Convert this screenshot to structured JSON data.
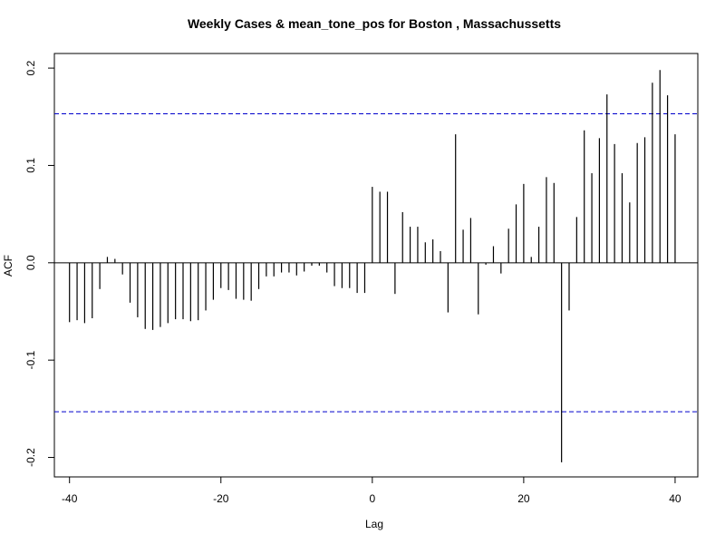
{
  "chart_data": {
    "type": "bar",
    "subtype": "ccf-stem",
    "title": "Weekly Cases & mean_tone_pos for Boston , Massachussetts",
    "xlabel": "Lag",
    "ylabel": "ACF",
    "xlim": [
      -42,
      43
    ],
    "ylim": [
      -0.22,
      0.215
    ],
    "xticks": [
      -40,
      -20,
      0,
      20,
      40
    ],
    "xtick_labels": [
      "-40",
      "-20",
      "0",
      "20",
      "40"
    ],
    "yticks": [
      -0.2,
      -0.1,
      0.0,
      0.1,
      0.2
    ],
    "ytick_labels": [
      "-0.2",
      "-0.1",
      "0.0",
      "0.1",
      "0.2"
    ],
    "confidence_band": [
      -0.153,
      0.153
    ],
    "confidence_color": "#0000cc",
    "bar_color": "#000000",
    "grid": false,
    "x": [
      -40,
      -39,
      -38,
      -37,
      -36,
      -35,
      -34,
      -33,
      -32,
      -31,
      -30,
      -29,
      -28,
      -27,
      -26,
      -25,
      -24,
      -23,
      -22,
      -21,
      -20,
      -19,
      -18,
      -17,
      -16,
      -15,
      -14,
      -13,
      -12,
      -11,
      -10,
      -9,
      -8,
      -7,
      -6,
      -5,
      -4,
      -3,
      -2,
      -1,
      0,
      1,
      2,
      3,
      4,
      5,
      6,
      7,
      8,
      9,
      10,
      11,
      12,
      13,
      14,
      15,
      16,
      17,
      18,
      19,
      20,
      21,
      22,
      23,
      24,
      25,
      26,
      27,
      28,
      29,
      30,
      31,
      32,
      33,
      34,
      35,
      36,
      37,
      38,
      39,
      40
    ],
    "values": [
      -0.061,
      -0.059,
      -0.062,
      -0.057,
      -0.027,
      0.006,
      0.004,
      -0.012,
      -0.041,
      -0.056,
      -0.068,
      -0.069,
      -0.066,
      -0.062,
      -0.058,
      -0.058,
      -0.06,
      -0.059,
      -0.049,
      -0.038,
      -0.026,
      -0.028,
      -0.037,
      -0.038,
      -0.039,
      -0.027,
      -0.014,
      -0.014,
      -0.01,
      -0.01,
      -0.013,
      -0.009,
      -0.003,
      -0.003,
      -0.01,
      -0.024,
      -0.026,
      -0.026,
      -0.031,
      -0.031,
      0.078,
      0.073,
      0.073,
      -0.032,
      0.052,
      0.037,
      0.037,
      0.021,
      0.024,
      0.012,
      -0.051,
      0.132,
      0.034,
      0.046,
      -0.053,
      -0.002,
      0.017,
      -0.011,
      0.035,
      0.06,
      0.081,
      0.006,
      0.037,
      0.088,
      0.082,
      -0.205,
      -0.049,
      0.047,
      0.136,
      0.092,
      0.128,
      0.173,
      0.122,
      0.092,
      0.062,
      0.123,
      0.129,
      0.185,
      0.198,
      0.172,
      0.132
    ]
  }
}
